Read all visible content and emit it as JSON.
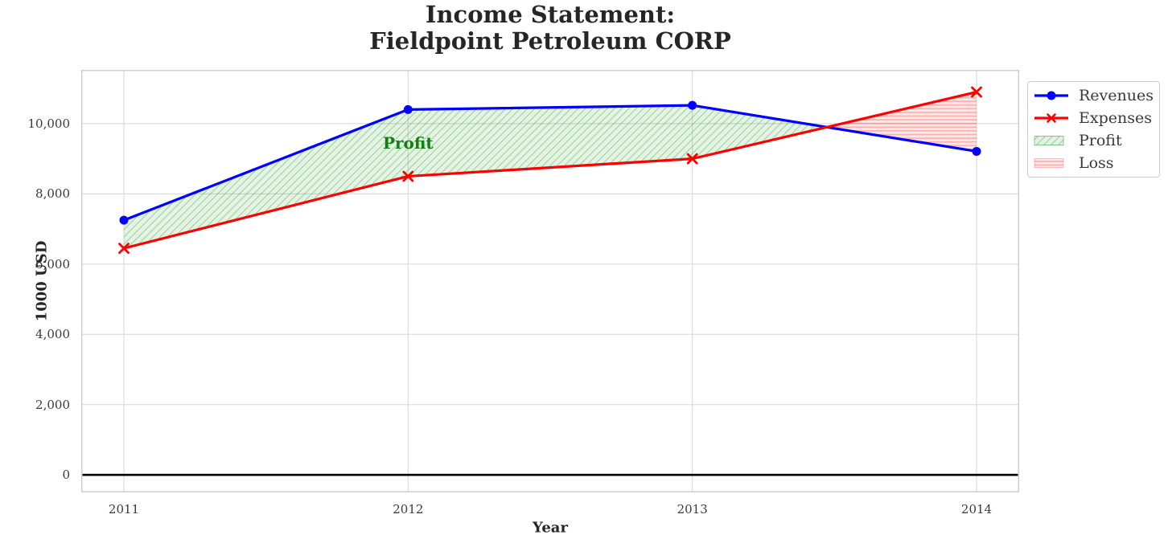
{
  "chart_data": {
    "type": "line",
    "title": "Income Statement:\nFieldpoint Petroleum CORP",
    "xlabel": "Year",
    "ylabel": "1000 USD",
    "x": [
      2011,
      2012,
      2013,
      2014
    ],
    "x_tick_labels": [
      "2011",
      "2012",
      "2013",
      "2014"
    ],
    "y_ticks": [
      0,
      2000,
      4000,
      6000,
      8000,
      10000
    ],
    "y_tick_labels": [
      "0",
      "2,000",
      "4,000",
      "6,000",
      "8,000",
      "10,000"
    ],
    "xlim": [
      2010.85,
      2014.15
    ],
    "ylim": [
      -500,
      11530
    ],
    "grid": true,
    "zero_line": true,
    "series": [
      {
        "name": "Revenues",
        "values": [
          7250,
          10400,
          10520,
          9210
        ],
        "color": "#0000ff",
        "marker": "circle"
      },
      {
        "name": "Expenses",
        "values": [
          6450,
          8500,
          9000,
          10900
        ],
        "color": "#ff0000",
        "marker": "x"
      }
    ],
    "fills": [
      {
        "name": "Profit",
        "condition": "revenues_above_expenses",
        "color": "#2ca02c",
        "hatch": "diagonal"
      },
      {
        "name": "Loss",
        "condition": "expenses_above_revenues",
        "color": "#ff0000",
        "hatch": "horizontal"
      }
    ],
    "legend": {
      "position": "upper-right-outside",
      "items": [
        {
          "label": "Revenues",
          "swatch": "line",
          "ref": 0
        },
        {
          "label": "Expenses",
          "swatch": "line",
          "ref": 1
        },
        {
          "label": "Profit",
          "swatch": "patch",
          "ref": 0
        },
        {
          "label": "Loss",
          "swatch": "patch",
          "ref": 1
        }
      ]
    },
    "annotation": {
      "text": "Profit",
      "color": "#118011",
      "x": 2012.0,
      "y": 9460
    }
  },
  "style_colors": {
    "grid": "#dcdcdc",
    "spine": "#cfcfcf",
    "zero_line": "#000000",
    "tick_text": "#3a3a3a",
    "title_text": "#262626"
  }
}
